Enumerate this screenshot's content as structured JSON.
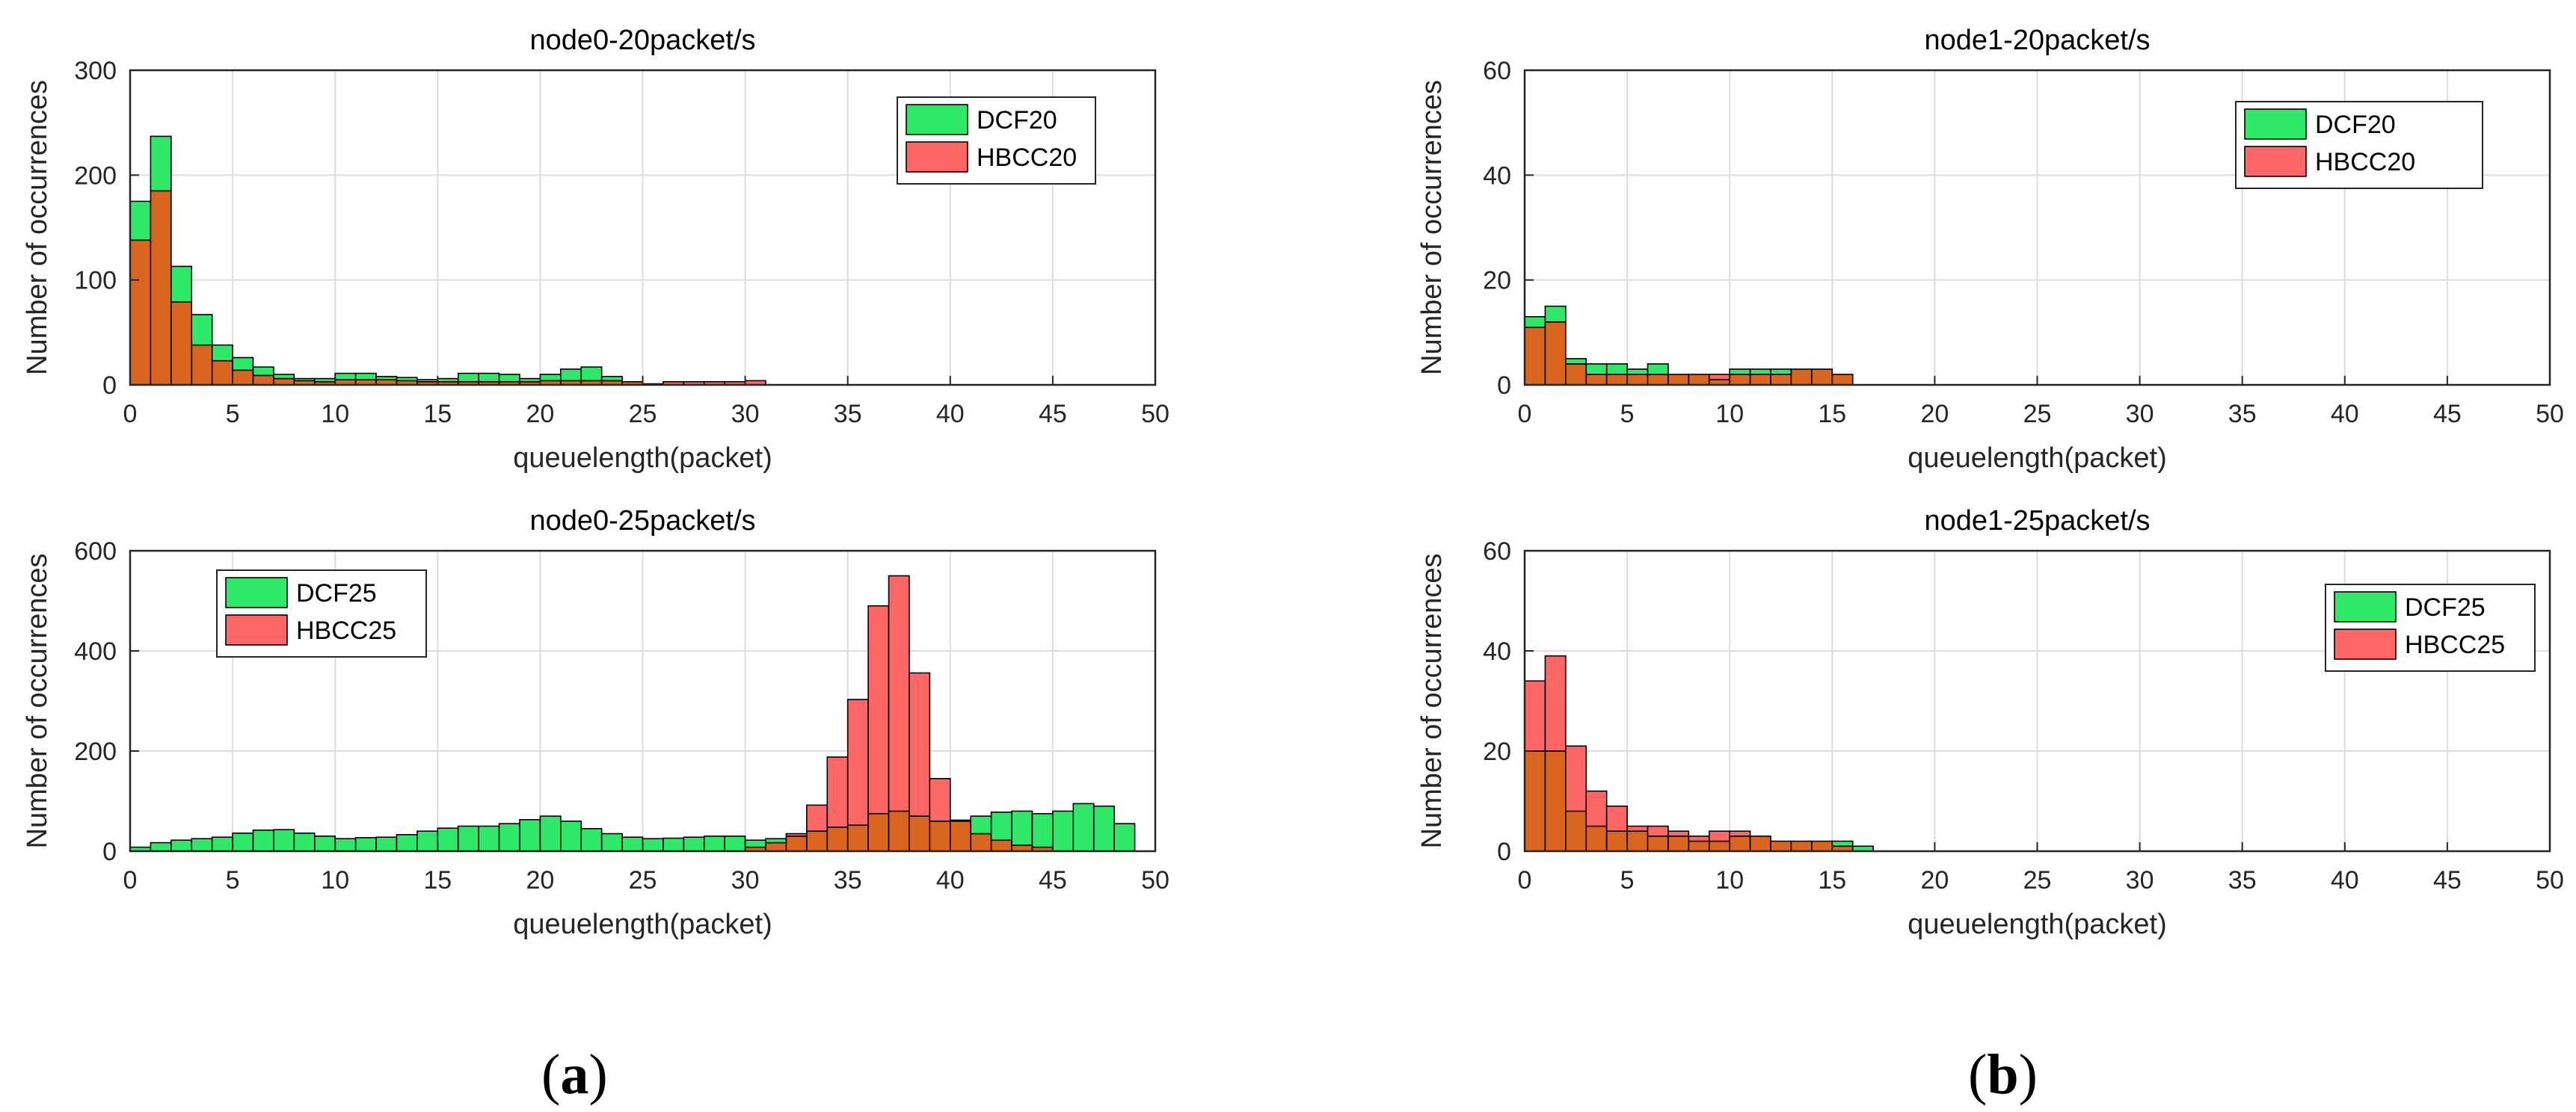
{
  "colors": {
    "dcf": "#2fe868",
    "hbcc": "#ff6666",
    "overlap": "#d9651f",
    "edge": "#000000",
    "grid": "#dcdcdc",
    "axis": "#262626"
  },
  "chart_data": [
    {
      "type": "bar",
      "title": "node0-20packet/s",
      "xlabel": "queuelength(packet)",
      "ylabel": "Number of occurrences",
      "xlim": [
        0,
        50
      ],
      "ylim": [
        0,
        300
      ],
      "xticks": [
        0,
        5,
        10,
        15,
        20,
        25,
        30,
        35,
        40,
        45,
        50
      ],
      "yticks": [
        0,
        100,
        200,
        300
      ],
      "xtick_labels": [
        "0",
        "5",
        "10",
        "15",
        "20",
        "25",
        "30",
        "35",
        "40",
        "45",
        "50"
      ],
      "ytick_labels": [
        "0",
        "100",
        "200",
        "300"
      ],
      "grid": true,
      "legend_position": "top-right",
      "bin_width": 1,
      "series": [
        {
          "name": "DCF20",
          "values": [
            175,
            237,
            113,
            67,
            38,
            26,
            17,
            10,
            6,
            6,
            11,
            11,
            8,
            7,
            5,
            6,
            11,
            11,
            10,
            6,
            10,
            15,
            17,
            8,
            3,
            1,
            0,
            0,
            0,
            0,
            0,
            0,
            0,
            0,
            0,
            0,
            0,
            0,
            0,
            0,
            0,
            0,
            0,
            0,
            0,
            0,
            0,
            0,
            0,
            0
          ]
        },
        {
          "name": "HBCC20",
          "values": [
            138,
            185,
            79,
            38,
            23,
            14,
            9,
            6,
            4,
            3,
            5,
            5,
            5,
            4,
            3,
            3,
            3,
            3,
            3,
            3,
            4,
            4,
            4,
            4,
            3,
            0,
            3,
            3,
            3,
            3,
            4,
            0,
            0,
            0,
            0,
            0,
            0,
            0,
            0,
            0,
            0,
            0,
            0,
            0,
            0,
            0,
            0,
            0,
            0,
            0
          ]
        }
      ]
    },
    {
      "type": "bar",
      "title": "node1-20packet/s",
      "xlabel": "queuelength(packet)",
      "ylabel": "Number of occurrences",
      "xlim": [
        0,
        50
      ],
      "ylim": [
        0,
        60
      ],
      "xticks": [
        0,
        5,
        10,
        15,
        20,
        25,
        30,
        35,
        40,
        45,
        50
      ],
      "yticks": [
        0,
        20,
        40,
        60
      ],
      "xtick_labels": [
        "0",
        "5",
        "10",
        "15",
        "20",
        "25",
        "30",
        "35",
        "40",
        "45",
        "50"
      ],
      "ytick_labels": [
        "0",
        "20",
        "40",
        "60"
      ],
      "grid": true,
      "legend_position": "top-right",
      "bin_width": 1,
      "series": [
        {
          "name": "DCF20",
          "values": [
            13,
            15,
            5,
            4,
            4,
            3,
            4,
            2,
            2,
            1,
            3,
            3,
            3,
            3,
            3,
            2,
            0,
            0,
            0,
            0,
            0,
            0,
            0,
            0,
            0,
            0,
            0,
            0,
            0,
            0,
            0,
            0,
            0,
            0,
            0,
            0,
            0,
            0,
            0,
            0,
            0,
            0,
            0,
            0,
            0,
            0,
            0,
            0,
            0,
            0
          ]
        },
        {
          "name": "HBCC20",
          "values": [
            11,
            12,
            4,
            2,
            2,
            2,
            2,
            2,
            2,
            2,
            2,
            2,
            2,
            3,
            3,
            2,
            0,
            0,
            0,
            0,
            0,
            0,
            0,
            0,
            0,
            0,
            0,
            0,
            0,
            0,
            0,
            0,
            0,
            0,
            0,
            0,
            0,
            0,
            0,
            0,
            0,
            0,
            0,
            0,
            0,
            0,
            0,
            0,
            0,
            0
          ]
        }
      ]
    },
    {
      "type": "bar",
      "title": "node0-25packet/s",
      "xlabel": "queuelength(packet)",
      "ylabel": "Number of occurrences",
      "xlim": [
        0,
        50
      ],
      "ylim": [
        0,
        600
      ],
      "xticks": [
        0,
        5,
        10,
        15,
        20,
        25,
        30,
        35,
        40,
        45,
        50
      ],
      "yticks": [
        0,
        200,
        400,
        600
      ],
      "xtick_labels": [
        "0",
        "5",
        "10",
        "15",
        "20",
        "25",
        "30",
        "35",
        "40",
        "45",
        "50"
      ],
      "ytick_labels": [
        "0",
        "200",
        "400",
        "600"
      ],
      "grid": true,
      "legend_position": "top-left",
      "bin_width": 1,
      "series": [
        {
          "name": "DCF25",
          "values": [
            8,
            17,
            22,
            25,
            28,
            36,
            42,
            43,
            36,
            30,
            25,
            27,
            28,
            33,
            40,
            46,
            50,
            50,
            55,
            63,
            70,
            60,
            45,
            35,
            28,
            25,
            26,
            28,
            30,
            30,
            22,
            25,
            30,
            40,
            48,
            52,
            75,
            80,
            70,
            60,
            60,
            70,
            78,
            80,
            75,
            80,
            95,
            90,
            55,
            0
          ]
        },
        {
          "name": "HBCC25",
          "values": [
            0,
            0,
            0,
            0,
            0,
            0,
            0,
            0,
            0,
            0,
            0,
            0,
            0,
            0,
            0,
            0,
            0,
            0,
            0,
            0,
            0,
            0,
            0,
            0,
            0,
            0,
            0,
            0,
            0,
            0,
            8,
            17,
            35,
            92,
            188,
            303,
            490,
            550,
            356,
            145,
            62,
            35,
            22,
            12,
            8,
            0,
            0,
            0,
            0,
            0
          ]
        }
      ]
    },
    {
      "type": "bar",
      "title": "node1-25packet/s",
      "xlabel": "queuelength(packet)",
      "ylabel": "Number of occurrences",
      "xlim": [
        0,
        50
      ],
      "ylim": [
        0,
        60
      ],
      "xticks": [
        0,
        5,
        10,
        15,
        20,
        25,
        30,
        35,
        40,
        45,
        50
      ],
      "yticks": [
        0,
        20,
        40,
        60
      ],
      "xtick_labels": [
        "0",
        "5",
        "10",
        "15",
        "20",
        "25",
        "30",
        "35",
        "40",
        "45",
        "50"
      ],
      "ytick_labels": [
        "0",
        "20",
        "40",
        "60"
      ],
      "grid": true,
      "legend_position": "top-right",
      "bin_width": 1,
      "series": [
        {
          "name": "DCF25",
          "values": [
            20,
            20,
            8,
            5,
            4,
            4,
            3,
            3,
            2,
            2,
            3,
            3,
            2,
            2,
            2,
            2,
            1,
            0,
            0,
            0,
            0,
            0,
            0,
            0,
            0,
            0,
            0,
            0,
            0,
            0,
            0,
            0,
            0,
            0,
            0,
            0,
            0,
            0,
            0,
            0,
            0,
            0,
            0,
            0,
            0,
            0,
            0,
            0,
            0,
            0
          ]
        },
        {
          "name": "HBCC25",
          "values": [
            34,
            39,
            21,
            12,
            9,
            5,
            5,
            4,
            3,
            4,
            4,
            3,
            2,
            2,
            2,
            1,
            0,
            0,
            0,
            0,
            0,
            0,
            0,
            0,
            0,
            0,
            0,
            0,
            0,
            0,
            0,
            0,
            0,
            0,
            0,
            0,
            0,
            0,
            0,
            0,
            0,
            0,
            0,
            0,
            0,
            0,
            0,
            0,
            0,
            0
          ]
        }
      ]
    }
  ],
  "panel_labels": {
    "a": {
      "open": "(",
      "letter": "a",
      "close": ")"
    },
    "b": {
      "open": "(",
      "letter": "b",
      "close": ")"
    }
  }
}
